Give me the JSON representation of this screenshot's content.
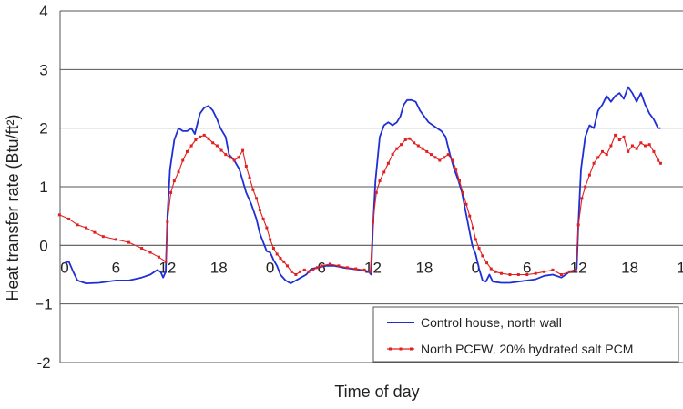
{
  "chart_data": {
    "type": "line",
    "title": "",
    "xlabel": "Time of day",
    "ylabel": "Heat transfer rate (Btu/ft²)",
    "ylim": [
      -2,
      4
    ],
    "yticks": [
      "4",
      "3",
      "2",
      "1",
      "0",
      "−1",
      "-2"
    ],
    "xlim": [
      0,
      72
    ],
    "x_tick_labels": [
      {
        "hour": 0,
        "label": "0"
      },
      {
        "hour": 6,
        "label": "6"
      },
      {
        "hour": 12,
        "label": "12"
      },
      {
        "hour": 18,
        "label": "18"
      },
      {
        "hour": 24,
        "label": "0"
      },
      {
        "hour": 30,
        "label": "6"
      },
      {
        "hour": 36,
        "label": "12"
      },
      {
        "hour": 42,
        "label": "18"
      },
      {
        "hour": 48,
        "label": "0"
      },
      {
        "hour": 54,
        "label": "6"
      },
      {
        "hour": 60,
        "label": "12"
      },
      {
        "hour": 66,
        "label": "18"
      },
      {
        "hour": 72,
        "label": "1"
      }
    ],
    "grid": true,
    "legend_position": "bottom-right",
    "series": [
      {
        "name": "Control house, north wall",
        "color": "#1f2fd6",
        "marker": "none",
        "points": [
          [
            0.0,
            -0.3
          ],
          [
            0.5,
            -0.28
          ],
          [
            1.0,
            -0.45
          ],
          [
            1.5,
            -0.6
          ],
          [
            2.5,
            -0.65
          ],
          [
            4,
            -0.64
          ],
          [
            6,
            -0.6
          ],
          [
            7.5,
            -0.6
          ],
          [
            9,
            -0.55
          ],
          [
            10,
            -0.5
          ],
          [
            10.8,
            -0.42
          ],
          [
            11.2,
            -0.45
          ],
          [
            11.5,
            -0.55
          ],
          [
            11.8,
            -0.45
          ],
          [
            12.0,
            0.5
          ],
          [
            12.3,
            1.3
          ],
          [
            12.8,
            1.8
          ],
          [
            13.3,
            2.0
          ],
          [
            13.8,
            1.95
          ],
          [
            14.3,
            1.95
          ],
          [
            14.8,
            2.0
          ],
          [
            15.2,
            1.9
          ],
          [
            15.8,
            2.25
          ],
          [
            16.3,
            2.35
          ],
          [
            16.8,
            2.38
          ],
          [
            17.3,
            2.3
          ],
          [
            17.8,
            2.15
          ],
          [
            18.2,
            2.0
          ],
          [
            18.8,
            1.85
          ],
          [
            19.2,
            1.55
          ],
          [
            19.8,
            1.45
          ],
          [
            20.4,
            1.3
          ],
          [
            20.8,
            1.1
          ],
          [
            21.2,
            0.9
          ],
          [
            21.8,
            0.7
          ],
          [
            22.4,
            0.45
          ],
          [
            22.8,
            0.2
          ],
          [
            23.2,
            0.05
          ],
          [
            23.6,
            -0.1
          ],
          [
            24.0,
            -0.12
          ],
          [
            24.4,
            -0.25
          ],
          [
            24.8,
            -0.35
          ],
          [
            25.2,
            -0.5
          ],
          [
            25.8,
            -0.6
          ],
          [
            26.4,
            -0.65
          ],
          [
            27.0,
            -0.6
          ],
          [
            27.6,
            -0.55
          ],
          [
            28.2,
            -0.5
          ],
          [
            28.8,
            -0.4
          ],
          [
            29.6,
            -0.38
          ],
          [
            30.5,
            -0.35
          ],
          [
            31.5,
            -0.35
          ],
          [
            32.5,
            -0.38
          ],
          [
            33.5,
            -0.4
          ],
          [
            34.5,
            -0.42
          ],
          [
            35.5,
            -0.45
          ],
          [
            35.8,
            -0.5
          ],
          [
            36.0,
            0.3
          ],
          [
            36.3,
            1.1
          ],
          [
            36.8,
            1.85
          ],
          [
            37.3,
            2.05
          ],
          [
            37.8,
            2.1
          ],
          [
            38.3,
            2.05
          ],
          [
            38.8,
            2.1
          ],
          [
            39.2,
            2.2
          ],
          [
            39.6,
            2.4
          ],
          [
            40.0,
            2.48
          ],
          [
            40.5,
            2.48
          ],
          [
            41.0,
            2.45
          ],
          [
            41.5,
            2.3
          ],
          [
            42.0,
            2.2
          ],
          [
            42.5,
            2.1
          ],
          [
            43.0,
            2.05
          ],
          [
            43.5,
            2.0
          ],
          [
            44.0,
            1.95
          ],
          [
            44.5,
            1.85
          ],
          [
            45.0,
            1.55
          ],
          [
            45.5,
            1.3
          ],
          [
            46.0,
            1.1
          ],
          [
            46.4,
            0.9
          ],
          [
            46.8,
            0.6
          ],
          [
            47.2,
            0.3
          ],
          [
            47.6,
            0.0
          ],
          [
            48.0,
            -0.15
          ],
          [
            48.4,
            -0.4
          ],
          [
            48.8,
            -0.6
          ],
          [
            49.2,
            -0.62
          ],
          [
            49.6,
            -0.5
          ],
          [
            50.0,
            -0.62
          ],
          [
            51,
            -0.64
          ],
          [
            52,
            -0.64
          ],
          [
            53,
            -0.62
          ],
          [
            54,
            -0.6
          ],
          [
            55,
            -0.58
          ],
          [
            56,
            -0.52
          ],
          [
            57,
            -0.5
          ],
          [
            58,
            -0.55
          ],
          [
            59,
            -0.45
          ],
          [
            59.6,
            -0.42
          ],
          [
            59.8,
            -0.4
          ],
          [
            60.0,
            0.4
          ],
          [
            60.3,
            1.3
          ],
          [
            60.8,
            1.85
          ],
          [
            61.3,
            2.05
          ],
          [
            61.8,
            2.0
          ],
          [
            62.3,
            2.3
          ],
          [
            62.8,
            2.4
          ],
          [
            63.3,
            2.55
          ],
          [
            63.8,
            2.45
          ],
          [
            64.3,
            2.55
          ],
          [
            64.8,
            2.6
          ],
          [
            65.3,
            2.5
          ],
          [
            65.8,
            2.7
          ],
          [
            66.3,
            2.6
          ],
          [
            66.8,
            2.45
          ],
          [
            67.3,
            2.6
          ],
          [
            67.8,
            2.4
          ],
          [
            68.3,
            2.25
          ],
          [
            68.8,
            2.15
          ],
          [
            69.3,
            2.0
          ],
          [
            69.6,
            2.0
          ]
        ]
      },
      {
        "name": "North PCFW, 20% hydrated salt PCM",
        "color": "#e02020",
        "marker": "square",
        "points": [
          [
            -0.6,
            0.52
          ],
          [
            0.5,
            0.45
          ],
          [
            1.5,
            0.35
          ],
          [
            2.5,
            0.3
          ],
          [
            3.5,
            0.22
          ],
          [
            4.5,
            0.15
          ],
          [
            6,
            0.1
          ],
          [
            7.5,
            0.05
          ],
          [
            9,
            -0.05
          ],
          [
            10,
            -0.12
          ],
          [
            11,
            -0.2
          ],
          [
            11.8,
            -0.28
          ],
          [
            12.0,
            0.4
          ],
          [
            12.4,
            0.9
          ],
          [
            12.8,
            1.1
          ],
          [
            13.3,
            1.25
          ],
          [
            13.8,
            1.45
          ],
          [
            14.3,
            1.6
          ],
          [
            14.8,
            1.7
          ],
          [
            15.3,
            1.8
          ],
          [
            15.8,
            1.85
          ],
          [
            16.3,
            1.88
          ],
          [
            16.8,
            1.82
          ],
          [
            17.3,
            1.75
          ],
          [
            17.8,
            1.7
          ],
          [
            18.3,
            1.62
          ],
          [
            18.8,
            1.55
          ],
          [
            19.3,
            1.5
          ],
          [
            19.8,
            1.45
          ],
          [
            20.3,
            1.5
          ],
          [
            20.8,
            1.62
          ],
          [
            21.2,
            1.35
          ],
          [
            21.6,
            1.15
          ],
          [
            22.0,
            0.95
          ],
          [
            22.4,
            0.8
          ],
          [
            22.8,
            0.6
          ],
          [
            23.2,
            0.45
          ],
          [
            23.6,
            0.3
          ],
          [
            24.0,
            0.1
          ],
          [
            24.4,
            -0.05
          ],
          [
            24.8,
            -0.15
          ],
          [
            25.2,
            -0.22
          ],
          [
            25.6,
            -0.28
          ],
          [
            26.0,
            -0.35
          ],
          [
            26.5,
            -0.45
          ],
          [
            27.0,
            -0.5
          ],
          [
            27.5,
            -0.45
          ],
          [
            28.0,
            -0.42
          ],
          [
            28.5,
            -0.45
          ],
          [
            29.0,
            -0.42
          ],
          [
            29.5,
            -0.38
          ],
          [
            30.0,
            -0.35
          ],
          [
            31,
            -0.32
          ],
          [
            32,
            -0.35
          ],
          [
            33,
            -0.38
          ],
          [
            34,
            -0.4
          ],
          [
            35,
            -0.42
          ],
          [
            35.7,
            -0.45
          ],
          [
            36.0,
            0.4
          ],
          [
            36.4,
            0.9
          ],
          [
            36.8,
            1.1
          ],
          [
            37.3,
            1.25
          ],
          [
            37.8,
            1.4
          ],
          [
            38.3,
            1.55
          ],
          [
            38.8,
            1.65
          ],
          [
            39.3,
            1.72
          ],
          [
            39.8,
            1.8
          ],
          [
            40.3,
            1.82
          ],
          [
            40.8,
            1.75
          ],
          [
            41.3,
            1.7
          ],
          [
            41.8,
            1.65
          ],
          [
            42.3,
            1.6
          ],
          [
            42.8,
            1.55
          ],
          [
            43.3,
            1.5
          ],
          [
            43.8,
            1.45
          ],
          [
            44.3,
            1.5
          ],
          [
            44.8,
            1.55
          ],
          [
            45.3,
            1.45
          ],
          [
            45.7,
            1.3
          ],
          [
            46.1,
            1.1
          ],
          [
            46.5,
            0.9
          ],
          [
            46.9,
            0.7
          ],
          [
            47.3,
            0.5
          ],
          [
            47.7,
            0.3
          ],
          [
            48.0,
            0.1
          ],
          [
            48.4,
            -0.05
          ],
          [
            48.8,
            -0.18
          ],
          [
            49.3,
            -0.3
          ],
          [
            49.8,
            -0.4
          ],
          [
            50.3,
            -0.45
          ],
          [
            51,
            -0.48
          ],
          [
            52,
            -0.5
          ],
          [
            53,
            -0.5
          ],
          [
            54,
            -0.5
          ],
          [
            55,
            -0.48
          ],
          [
            56,
            -0.45
          ],
          [
            57,
            -0.42
          ],
          [
            58,
            -0.5
          ],
          [
            59,
            -0.45
          ],
          [
            59.7,
            -0.42
          ],
          [
            60.0,
            0.35
          ],
          [
            60.4,
            0.8
          ],
          [
            60.8,
            1.0
          ],
          [
            61.3,
            1.2
          ],
          [
            61.8,
            1.4
          ],
          [
            62.3,
            1.5
          ],
          [
            62.8,
            1.6
          ],
          [
            63.3,
            1.55
          ],
          [
            63.8,
            1.7
          ],
          [
            64.3,
            1.88
          ],
          [
            64.8,
            1.8
          ],
          [
            65.3,
            1.85
          ],
          [
            65.8,
            1.6
          ],
          [
            66.3,
            1.7
          ],
          [
            66.8,
            1.65
          ],
          [
            67.3,
            1.75
          ],
          [
            67.8,
            1.7
          ],
          [
            68.3,
            1.72
          ],
          [
            68.8,
            1.6
          ],
          [
            69.3,
            1.45
          ],
          [
            69.6,
            1.4
          ]
        ]
      }
    ]
  }
}
